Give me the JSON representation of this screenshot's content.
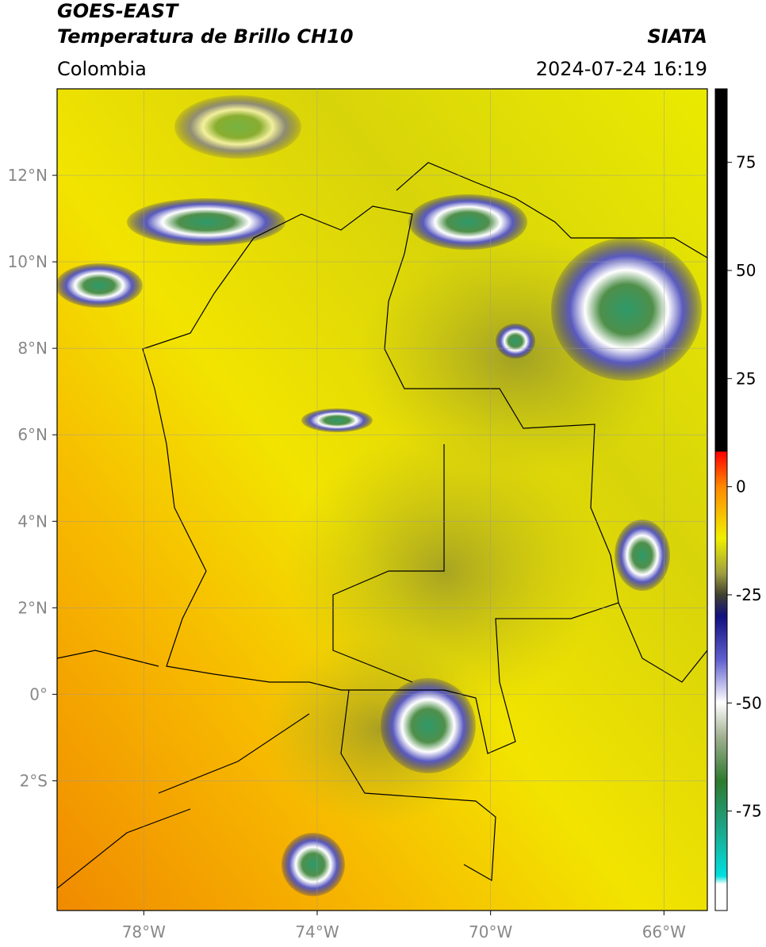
{
  "header": {
    "title_line1": "GOES-EAST",
    "title_line2": "Temperatura de Brillo CH10",
    "region": "Colombia",
    "source": "SIATA",
    "datetime": "2024-07-24 16:19"
  },
  "map": {
    "xlim": [
      -80,
      -65
    ],
    "ylim": [
      -5,
      14
    ],
    "xticks": [
      {
        "value": -78,
        "label": "78°W"
      },
      {
        "value": -74,
        "label": "74°W"
      },
      {
        "value": -70,
        "label": "70°W"
      },
      {
        "value": -66,
        "label": "66°W"
      }
    ],
    "yticks": [
      {
        "value": 12,
        "label": "12°N"
      },
      {
        "value": 10,
        "label": "10°N"
      },
      {
        "value": 8,
        "label": "8°N"
      },
      {
        "value": 6,
        "label": "6°N"
      },
      {
        "value": 4,
        "label": "4°N"
      },
      {
        "value": 2,
        "label": "2°N"
      },
      {
        "value": 0,
        "label": "0°"
      },
      {
        "value": -2,
        "label": "2°S"
      }
    ],
    "grid": true
  },
  "colorbar": {
    "lim": [
      -98,
      92
    ],
    "ticks": [
      75,
      50,
      25,
      0,
      -25,
      -50,
      -75
    ]
  }
}
